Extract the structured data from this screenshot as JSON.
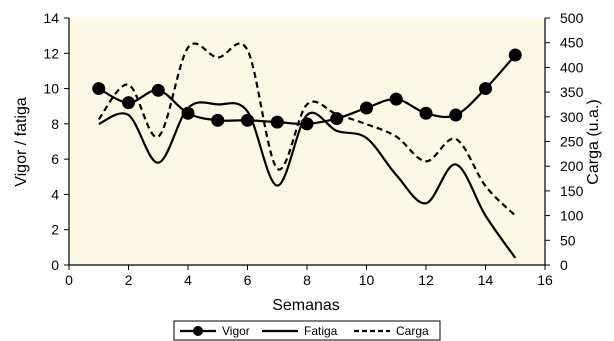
{
  "chart_data": {
    "type": "line",
    "xlabel": "Semanas",
    "ylabel": "Vigor / fatiga",
    "y2label": "Carga (u.a.)",
    "xlim": [
      0,
      16
    ],
    "ylim": [
      0,
      14
    ],
    "y2lim": [
      0,
      500
    ],
    "xticks": [
      0,
      2,
      4,
      6,
      8,
      10,
      12,
      14,
      16
    ],
    "yticks": [
      0,
      2,
      4,
      6,
      8,
      10,
      12,
      14
    ],
    "y2ticks": [
      0,
      50,
      100,
      150,
      200,
      250,
      300,
      350,
      400,
      450,
      500
    ],
    "grid": false,
    "legend_position": "bottom",
    "background_color": "#fbf8e6",
    "x": [
      1,
      2,
      3,
      4,
      5,
      6,
      7,
      8,
      9,
      10,
      11,
      12,
      13,
      14,
      15
    ],
    "series": [
      {
        "name": "Vigor",
        "axis": "left",
        "style": "solid-markers",
        "color": "#000000",
        "values": [
          10.0,
          9.2,
          9.9,
          8.6,
          8.2,
          8.2,
          8.1,
          8.0,
          8.3,
          8.9,
          9.4,
          8.6,
          8.5,
          10.0,
          11.9
        ]
      },
      {
        "name": "Fatiga",
        "axis": "left",
        "style": "solid",
        "color": "#000000",
        "values": [
          8.0,
          8.5,
          5.8,
          8.9,
          9.1,
          8.7,
          4.5,
          8.5,
          7.6,
          7.2,
          5.1,
          3.5,
          5.7,
          2.8,
          0.4
        ]
      },
      {
        "name": "Carga",
        "axis": "right",
        "style": "dashed",
        "color": "#000000",
        "values": [
          295,
          365,
          260,
          440,
          420,
          435,
          195,
          325,
          305,
          285,
          260,
          210,
          255,
          160,
          100
        ]
      }
    ]
  }
}
